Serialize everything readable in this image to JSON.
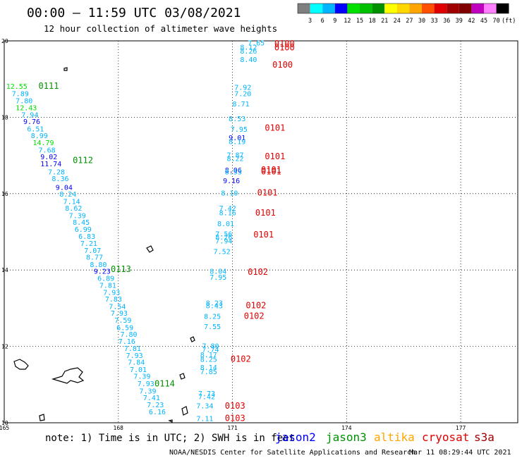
{
  "header": {
    "title": "00:00 – 11:59 UTC 03/08/2021",
    "subtitle": "12 hour collection of altimeter wave heights"
  },
  "color_scale": {
    "colors": [
      "#7f7f7f",
      "#00ffff",
      "#00b4ff",
      "#0000ff",
      "#00e000",
      "#00c000",
      "#009000",
      "#ffff00",
      "#ffd700",
      "#ffa500",
      "#ff5000",
      "#e00000",
      "#a00000",
      "#800000",
      "#c000c0",
      "#ff80ff",
      "#000000"
    ],
    "labels": [
      "3",
      "6",
      "9",
      "12",
      "15",
      "18",
      "21",
      "24",
      "27",
      "30",
      "33",
      "36",
      "39",
      "42",
      "45",
      "70",
      "(ft)"
    ]
  },
  "map": {
    "lon_min": 165,
    "lon_max": 178.5,
    "lat_min": 10,
    "lat_max": 20,
    "x_ticks": [
      {
        "lon": 165,
        "label": "165"
      },
      {
        "lon": 168,
        "label": "168"
      },
      {
        "lon": 171,
        "label": "171"
      },
      {
        "lon": 174,
        "label": "174"
      },
      {
        "lon": 177,
        "label": "177"
      }
    ],
    "y_ticks": [
      {
        "lat": 20,
        "label": "20"
      },
      {
        "lat": 18,
        "label": "18"
      },
      {
        "lat": 16,
        "label": "16"
      },
      {
        "lat": 14,
        "label": "14"
      },
      {
        "lat": 12,
        "label": "12"
      },
      {
        "lat": 10,
        "label": "10"
      }
    ]
  },
  "passes": [
    {
      "label": "0111",
      "lon": 165.9,
      "lat": 18.75,
      "color": "#009000"
    },
    {
      "label": "0112",
      "lon": 166.8,
      "lat": 16.8,
      "color": "#009000"
    },
    {
      "label": "0113",
      "lon": 167.8,
      "lat": 13.95,
      "color": "#009000"
    },
    {
      "label": "0114",
      "lon": 168.95,
      "lat": 10.95,
      "color": "#009000"
    },
    {
      "label": "0100",
      "lon": 172.1,
      "lat": 19.85,
      "color": "#e00000"
    },
    {
      "label": "0100",
      "lon": 172.1,
      "lat": 19.75,
      "color": "#e00000"
    },
    {
      "label": "0100",
      "lon": 172.05,
      "lat": 19.3,
      "color": "#e00000"
    },
    {
      "label": "0101",
      "lon": 171.85,
      "lat": 17.65,
      "color": "#e00000"
    },
    {
      "label": "0101",
      "lon": 171.85,
      "lat": 16.9,
      "color": "#e00000"
    },
    {
      "label": "0101",
      "lon": 171.75,
      "lat": 16.55,
      "color": "#e00000"
    },
    {
      "label": "0101",
      "lon": 171.75,
      "lat": 16.5,
      "color": "#e00000"
    },
    {
      "label": "0101",
      "lon": 171.65,
      "lat": 15.95,
      "color": "#e00000"
    },
    {
      "label": "0101",
      "lon": 171.6,
      "lat": 15.42,
      "color": "#e00000"
    },
    {
      "label": "0101",
      "lon": 171.55,
      "lat": 14.85,
      "color": "#e00000"
    },
    {
      "label": "0102",
      "lon": 171.4,
      "lat": 13.87,
      "color": "#e00000"
    },
    {
      "label": "0102",
      "lon": 171.35,
      "lat": 13.0,
      "color": "#e00000"
    },
    {
      "label": "0102",
      "lon": 171.3,
      "lat": 12.72,
      "color": "#e00000"
    },
    {
      "label": "0102",
      "lon": 170.95,
      "lat": 11.6,
      "color": "#e00000"
    },
    {
      "label": "0103",
      "lon": 170.8,
      "lat": 10.37,
      "color": "#e00000"
    },
    {
      "label": "0103",
      "lon": 170.8,
      "lat": 10.05,
      "color": "#e00000"
    }
  ],
  "values": [
    {
      "v": "12.55",
      "lon": 165.05,
      "lat": 18.75,
      "c": "#00e000"
    },
    {
      "v": "7.89",
      "lon": 165.2,
      "lat": 18.55,
      "c": "#00b4ff"
    },
    {
      "v": "7.80",
      "lon": 165.3,
      "lat": 18.37,
      "c": "#00b4ff"
    },
    {
      "v": "12.43",
      "lon": 165.3,
      "lat": 18.18,
      "c": "#00e000"
    },
    {
      "v": "7.94",
      "lon": 165.45,
      "lat": 18.0,
      "c": "#00b4ff"
    },
    {
      "v": "9.76",
      "lon": 165.5,
      "lat": 17.82,
      "c": "#0000ff"
    },
    {
      "v": "6.51",
      "lon": 165.6,
      "lat": 17.63,
      "c": "#00b4ff"
    },
    {
      "v": "8.99",
      "lon": 165.7,
      "lat": 17.45,
      "c": "#00b4ff"
    },
    {
      "v": "14.79",
      "lon": 165.75,
      "lat": 17.27,
      "c": "#00e000"
    },
    {
      "v": "7.68",
      "lon": 165.9,
      "lat": 17.08,
      "c": "#00b4ff"
    },
    {
      "v": "9.02",
      "lon": 165.95,
      "lat": 16.9,
      "c": "#0000ff"
    },
    {
      "v": "11.74",
      "lon": 165.95,
      "lat": 16.72,
      "c": "#0000ff"
    },
    {
      "v": "7.28",
      "lon": 166.15,
      "lat": 16.5,
      "c": "#00b4ff"
    },
    {
      "v": "8.36",
      "lon": 166.25,
      "lat": 16.33,
      "c": "#00b4ff"
    },
    {
      "v": "9.04",
      "lon": 166.35,
      "lat": 16.1,
      "c": "#0000ff"
    },
    {
      "v": "8.24",
      "lon": 166.45,
      "lat": 15.92,
      "c": "#00b4ff"
    },
    {
      "v": "7.14",
      "lon": 166.55,
      "lat": 15.73,
      "c": "#00b4ff"
    },
    {
      "v": "8.62",
      "lon": 166.6,
      "lat": 15.55,
      "c": "#00b4ff"
    },
    {
      "v": "7.39",
      "lon": 166.7,
      "lat": 15.36,
      "c": "#00b4ff"
    },
    {
      "v": "8.45",
      "lon": 166.8,
      "lat": 15.18,
      "c": "#00b4ff"
    },
    {
      "v": "6.99",
      "lon": 166.85,
      "lat": 15.0,
      "c": "#00b4ff"
    },
    {
      "v": "6.83",
      "lon": 166.95,
      "lat": 14.82,
      "c": "#00b4ff"
    },
    {
      "v": "7.21",
      "lon": 167.0,
      "lat": 14.63,
      "c": "#00b4ff"
    },
    {
      "v": "7.07",
      "lon": 167.1,
      "lat": 14.45,
      "c": "#00b4ff"
    },
    {
      "v": "8.77",
      "lon": 167.15,
      "lat": 14.27,
      "c": "#00b4ff"
    },
    {
      "v": "8.80",
      "lon": 167.25,
      "lat": 14.08,
      "c": "#00b4ff"
    },
    {
      "v": "9.23",
      "lon": 167.35,
      "lat": 13.9,
      "c": "#0000ff"
    },
    {
      "v": "6.89",
      "lon": 167.45,
      "lat": 13.72,
      "c": "#00b4ff"
    },
    {
      "v": "7.81",
      "lon": 167.5,
      "lat": 13.53,
      "c": "#00b4ff"
    },
    {
      "v": "7.93",
      "lon": 167.6,
      "lat": 13.35,
      "c": "#00b4ff"
    },
    {
      "v": "7.83",
      "lon": 167.65,
      "lat": 13.17,
      "c": "#00b4ff"
    },
    {
      "v": "7.54",
      "lon": 167.75,
      "lat": 12.98,
      "c": "#00b4ff"
    },
    {
      "v": "7.93",
      "lon": 167.8,
      "lat": 12.8,
      "c": "#00b4ff"
    },
    {
      "v": "7.59",
      "lon": 167.9,
      "lat": 12.62,
      "c": "#00b4ff"
    },
    {
      "v": "6.59",
      "lon": 167.95,
      "lat": 12.43,
      "c": "#00b4ff"
    },
    {
      "v": "7.80",
      "lon": 168.05,
      "lat": 12.25,
      "c": "#00b4ff"
    },
    {
      "v": "7.16",
      "lon": 168.0,
      "lat": 12.07,
      "c": "#00b4ff"
    },
    {
      "v": "7.81",
      "lon": 168.15,
      "lat": 11.88,
      "c": "#00b4ff"
    },
    {
      "v": "7.93",
      "lon": 168.2,
      "lat": 11.7,
      "c": "#00b4ff"
    },
    {
      "v": "7.84",
      "lon": 168.25,
      "lat": 11.52,
      "c": "#00b4ff"
    },
    {
      "v": "7.01",
      "lon": 168.3,
      "lat": 11.33,
      "c": "#00b4ff"
    },
    {
      "v": "7.39",
      "lon": 168.4,
      "lat": 11.15,
      "c": "#00b4ff"
    },
    {
      "v": "7.93",
      "lon": 168.5,
      "lat": 10.96,
      "c": "#00b4ff"
    },
    {
      "v": "7.39",
      "lon": 168.55,
      "lat": 10.77,
      "c": "#00b4ff"
    },
    {
      "v": "7.41",
      "lon": 168.65,
      "lat": 10.59,
      "c": "#00b4ff"
    },
    {
      "v": "7.23",
      "lon": 168.75,
      "lat": 10.41,
      "c": "#00b4ff"
    },
    {
      "v": "6.16",
      "lon": 168.8,
      "lat": 10.22,
      "c": "#00b4ff"
    },
    {
      "v": "7.65",
      "lon": 171.4,
      "lat": 19.88,
      "c": "#00b4ff"
    },
    {
      "v": "8.12",
      "lon": 171.2,
      "lat": 19.77,
      "c": "#00b4ff"
    },
    {
      "v": "8.26",
      "lon": 171.2,
      "lat": 19.67,
      "c": "#00b4ff"
    },
    {
      "v": "8.40",
      "lon": 171.2,
      "lat": 19.45,
      "c": "#00b4ff"
    },
    {
      "v": "7.92",
      "lon": 171.05,
      "lat": 18.72,
      "c": "#00b4ff"
    },
    {
      "v": "7.20",
      "lon": 171.05,
      "lat": 18.55,
      "c": "#00b4ff"
    },
    {
      "v": "8.71",
      "lon": 171.0,
      "lat": 18.28,
      "c": "#00b4ff"
    },
    {
      "v": "8.53",
      "lon": 170.9,
      "lat": 17.9,
      "c": "#00b4ff"
    },
    {
      "v": "7.95",
      "lon": 170.95,
      "lat": 17.62,
      "c": "#00b4ff"
    },
    {
      "v": "9.01",
      "lon": 170.9,
      "lat": 17.4,
      "c": "#0000ff"
    },
    {
      "v": "8.19",
      "lon": 170.9,
      "lat": 17.3,
      "c": "#00b4ff"
    },
    {
      "v": "7.87",
      "lon": 170.85,
      "lat": 16.95,
      "c": "#00b4ff"
    },
    {
      "v": "8.22",
      "lon": 170.85,
      "lat": 16.85,
      "c": "#00b4ff"
    },
    {
      "v": "8.06",
      "lon": 170.8,
      "lat": 16.55,
      "c": "#0000ff"
    },
    {
      "v": "8.53",
      "lon": 170.8,
      "lat": 16.5,
      "c": "#00b4ff"
    },
    {
      "v": "9.16",
      "lon": 170.75,
      "lat": 16.27,
      "c": "#0000ff"
    },
    {
      "v": "8.10",
      "lon": 170.7,
      "lat": 15.95,
      "c": "#00b4ff"
    },
    {
      "v": "7.42",
      "lon": 170.65,
      "lat": 15.55,
      "c": "#00b4ff"
    },
    {
      "v": "8.16",
      "lon": 170.65,
      "lat": 15.43,
      "c": "#00b4ff"
    },
    {
      "v": "8.01",
      "lon": 170.6,
      "lat": 15.15,
      "c": "#00b4ff"
    },
    {
      "v": "7.56",
      "lon": 170.55,
      "lat": 14.88,
      "c": "#00b4ff"
    },
    {
      "v": "8.26",
      "lon": 170.55,
      "lat": 14.8,
      "c": "#00b4ff"
    },
    {
      "v": "7.94",
      "lon": 170.55,
      "lat": 14.7,
      "c": "#00b4ff"
    },
    {
      "v": "7.52",
      "lon": 170.5,
      "lat": 14.42,
      "c": "#00b4ff"
    },
    {
      "v": "8.04",
      "lon": 170.4,
      "lat": 13.9,
      "c": "#00b4ff"
    },
    {
      "v": "7.95",
      "lon": 170.4,
      "lat": 13.75,
      "c": "#00b4ff"
    },
    {
      "v": "8.23",
      "lon": 170.3,
      "lat": 13.07,
      "c": "#00b4ff"
    },
    {
      "v": "8.43",
      "lon": 170.3,
      "lat": 13.0,
      "c": "#00b4ff"
    },
    {
      "v": "8.25",
      "lon": 170.25,
      "lat": 12.72,
      "c": "#00b4ff"
    },
    {
      "v": "7.55",
      "lon": 170.25,
      "lat": 12.45,
      "c": "#00b4ff"
    },
    {
      "v": "7.80",
      "lon": 170.2,
      "lat": 11.95,
      "c": "#00b4ff"
    },
    {
      "v": "7.74",
      "lon": 170.2,
      "lat": 11.85,
      "c": "#00b4ff"
    },
    {
      "v": "8.17",
      "lon": 170.15,
      "lat": 11.72,
      "c": "#00b4ff"
    },
    {
      "v": "8.25",
      "lon": 170.15,
      "lat": 11.6,
      "c": "#00b4ff"
    },
    {
      "v": "8.14",
      "lon": 170.15,
      "lat": 11.38,
      "c": "#00b4ff"
    },
    {
      "v": "7.85",
      "lon": 170.15,
      "lat": 11.27,
      "c": "#00b4ff"
    },
    {
      "v": "7.73",
      "lon": 170.1,
      "lat": 10.7,
      "c": "#00b4ff"
    },
    {
      "v": "7.42",
      "lon": 170.1,
      "lat": 10.62,
      "c": "#00b4ff"
    },
    {
      "v": "7.34",
      "lon": 170.05,
      "lat": 10.38,
      "c": "#00b4ff"
    },
    {
      "v": "7.11",
      "lon": 170.05,
      "lat": 10.05,
      "c": "#00b4ff"
    }
  ],
  "note": "note: 1) Time is in UTC; 2) SWH is in feet",
  "missions": [
    {
      "name": "jason2",
      "color": "#0000ff"
    },
    {
      "name": "jason3",
      "color": "#009000"
    },
    {
      "name": "altika",
      "color": "#ffa500"
    },
    {
      "name": "cryosat",
      "color": "#e00000"
    },
    {
      "name": "s3a",
      "color": "#a00000"
    }
  ],
  "footer": {
    "credit": "NOAA/NESDIS Center for Satellite Applications and Research",
    "timestamp": "Mar 11 08:29:44 UTC 2021"
  }
}
